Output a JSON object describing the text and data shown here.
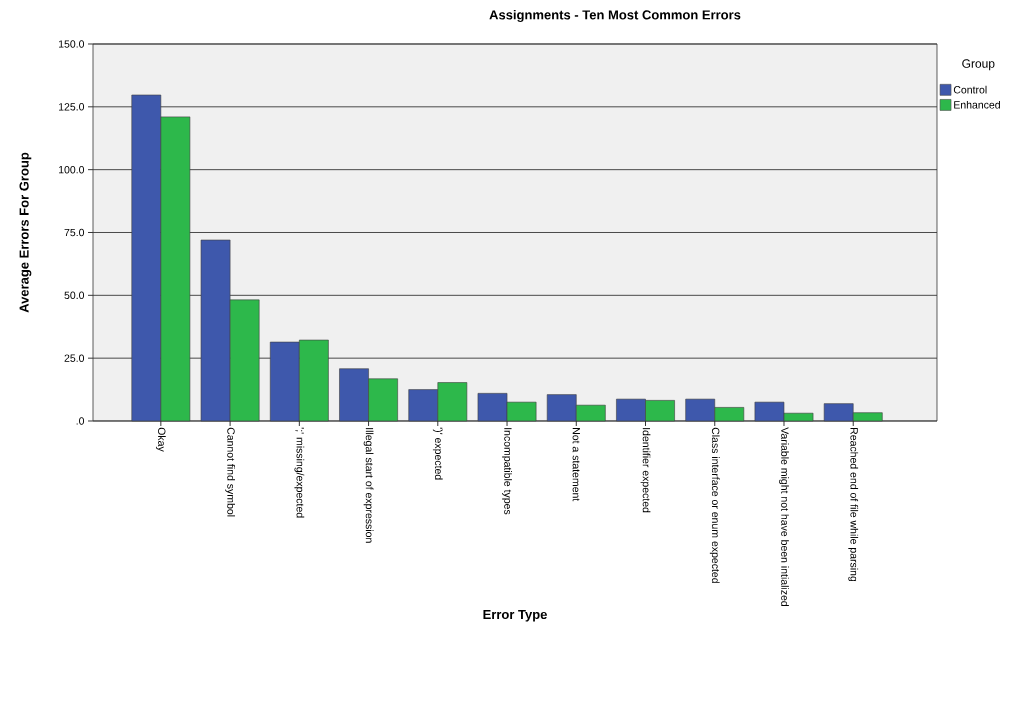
{
  "chart_data": {
    "type": "bar",
    "title": "Assignments - Ten Most Common Errors",
    "xlabel": "Error Type",
    "ylabel": "Average Errors For Group",
    "legend_title": "Group",
    "categories": [
      "Okay",
      "Cannot find symbol",
      "';' missing/expected",
      "Illegal start of expression",
      "')' expected",
      "Incompatible types",
      "Not a statement",
      "Identifier expected",
      "Class interface or enum expected",
      "Variable might not have been intialized",
      "Reached end of file while parsing"
    ],
    "series": [
      {
        "name": "Control",
        "color": "#3e58ac",
        "values": [
          129.7,
          72.0,
          31.4,
          20.8,
          12.5,
          11.0,
          10.5,
          8.7,
          8.7,
          7.5,
          6.9
        ]
      },
      {
        "name": "Enhanced",
        "color": "#2db84b",
        "values": [
          121.0,
          48.2,
          32.2,
          16.8,
          15.3,
          7.5,
          6.3,
          8.2,
          5.4,
          3.1,
          3.3
        ]
      }
    ],
    "ylim": [
      0,
      150
    ],
    "yticks": [
      {
        "value": 0,
        "label": ".0"
      },
      {
        "value": 25,
        "label": "25.0"
      },
      {
        "value": 50,
        "label": "50.0"
      },
      {
        "value": 75,
        "label": "75.0"
      },
      {
        "value": 100,
        "label": "100.0"
      },
      {
        "value": 125,
        "label": "125.0"
      },
      {
        "value": 150,
        "label": "150.0"
      }
    ],
    "grid": "y",
    "legend": "top right"
  }
}
